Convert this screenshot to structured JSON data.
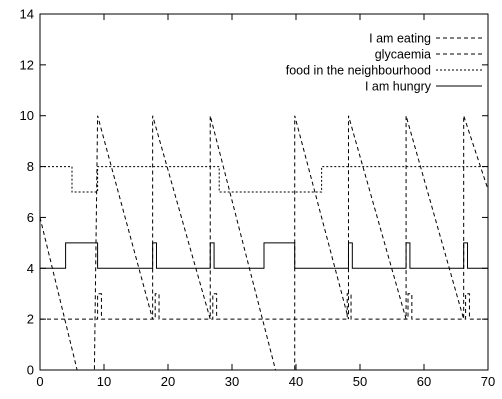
{
  "chart_data": {
    "type": "line",
    "xlim": [
      0,
      70
    ],
    "ylim": [
      0,
      14
    ],
    "xticks": [
      "0",
      "10",
      "20",
      "30",
      "40",
      "50",
      "60",
      "70"
    ],
    "yticks": [
      "0",
      "2",
      "4",
      "6",
      "8",
      "10",
      "12",
      "14"
    ],
    "grid": false,
    "legend_position": "top-right",
    "series": [
      {
        "name": "I am eating",
        "style": "dashed",
        "color": "#000000",
        "x": [
          0,
          9,
          9,
          9.6,
          9.6,
          18,
          18,
          18.6,
          18.6,
          27,
          27,
          27.6,
          27.6,
          48,
          48,
          48.6,
          48.6,
          57.5,
          57.5,
          58.1,
          58.1,
          66.5,
          66.5,
          67.1,
          67.1,
          70
        ],
        "y": [
          2,
          2,
          3,
          3,
          2,
          2,
          3,
          3,
          2,
          2,
          3,
          3,
          2,
          2,
          3,
          3,
          2,
          2,
          3,
          3,
          2,
          2,
          3,
          3,
          2,
          2
        ]
      },
      {
        "name": "glycaemia",
        "style": "dashed",
        "color": "#000000",
        "x": [
          0,
          5.8,
          8.5,
          9,
          17.6,
          17.6,
          26.6,
          26.6,
          36.8,
          39.8,
          39.8,
          48.2,
          48.2,
          57.2,
          57.2,
          66.2,
          66.2,
          70
        ],
        "y": [
          6,
          0,
          0,
          10,
          2,
          10,
          2,
          10,
          0,
          0,
          10,
          2,
          10,
          2,
          10,
          2,
          10,
          7.1
        ]
      },
      {
        "name": "food in the neighbourhood",
        "style": "dotted",
        "color": "#000000",
        "x": [
          0,
          5,
          5,
          9,
          9,
          28,
          28,
          44,
          44,
          70
        ],
        "y": [
          8,
          8,
          7,
          7,
          8,
          8,
          7,
          7,
          8,
          8
        ]
      },
      {
        "name": "I am hungry",
        "style": "solid",
        "color": "#000000",
        "x": [
          0,
          4,
          4,
          9,
          9,
          17.6,
          17.6,
          18.2,
          18.2,
          26.6,
          26.6,
          27.2,
          27.2,
          35,
          35,
          39.8,
          39.8,
          48.2,
          48.2,
          48.8,
          48.8,
          57.2,
          57.2,
          57.8,
          57.8,
          66.2,
          66.2,
          66.8,
          66.8,
          70
        ],
        "y": [
          4,
          4,
          5,
          5,
          4,
          4,
          5,
          5,
          4,
          4,
          5,
          5,
          4,
          4,
          5,
          5,
          4,
          4,
          5,
          5,
          4,
          4,
          5,
          5,
          4,
          4,
          5,
          5,
          4,
          4
        ]
      }
    ]
  }
}
